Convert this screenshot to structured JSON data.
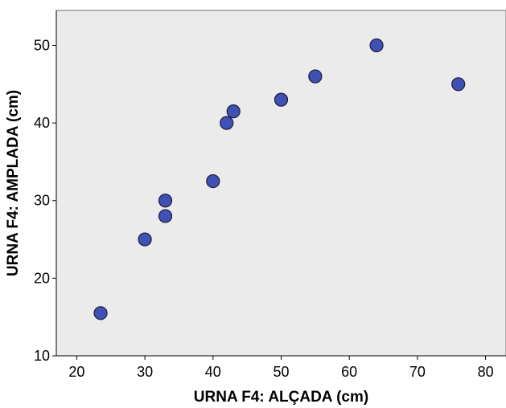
{
  "chart_data": {
    "type": "scatter",
    "title": "",
    "xlabel": "URNA F4: ALÇADA (cm)",
    "ylabel": "URNA F4: AMPLADA (cm)",
    "xlim": [
      17,
      83
    ],
    "ylim": [
      10,
      54.5
    ],
    "xticks": [
      20,
      30,
      40,
      50,
      60,
      70,
      80
    ],
    "yticks": [
      10,
      20,
      30,
      40,
      50
    ],
    "xtick_labels": [
      "20",
      "30",
      "40",
      "50",
      "60",
      "70",
      "80"
    ],
    "ytick_labels": [
      "10",
      "20",
      "30",
      "40",
      "50"
    ],
    "grid": false,
    "legend": "none",
    "colors": {
      "plot_background": "#ebebeb",
      "marker_fill": "#3f51b5",
      "marker_stroke": "#1c1c3a",
      "axis": "#000000"
    },
    "points": [
      {
        "x": 23.5,
        "y": 15.5
      },
      {
        "x": 30,
        "y": 25
      },
      {
        "x": 33,
        "y": 28
      },
      {
        "x": 33,
        "y": 30
      },
      {
        "x": 40,
        "y": 32.5
      },
      {
        "x": 42,
        "y": 40
      },
      {
        "x": 43,
        "y": 41.5
      },
      {
        "x": 50,
        "y": 43
      },
      {
        "x": 55,
        "y": 46
      },
      {
        "x": 64,
        "y": 50
      },
      {
        "x": 76,
        "y": 45
      }
    ]
  }
}
